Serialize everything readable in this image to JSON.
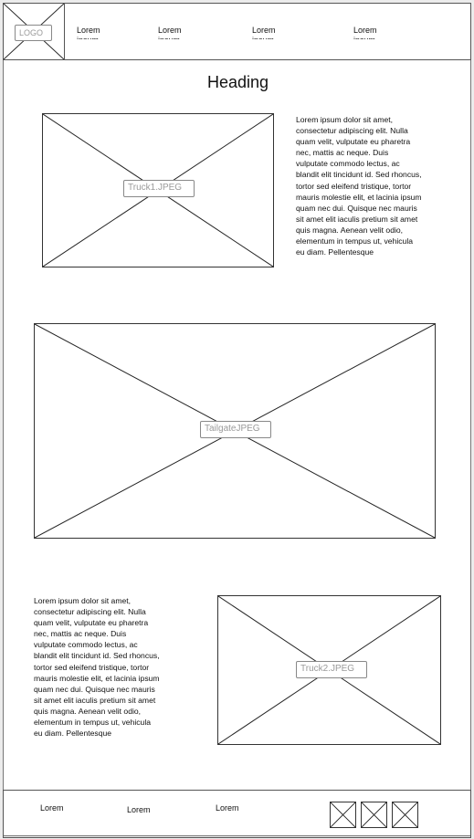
{
  "header": {
    "logo_label": "LOGO",
    "nav": [
      {
        "line1": "Lorem",
        "line2": "ipsum"
      },
      {
        "line1": "Lorem",
        "line2": "ipsum"
      },
      {
        "line1": "Lorem",
        "line2": "ipsum"
      },
      {
        "line1": "Lorem",
        "line2": "ipsum"
      }
    ]
  },
  "main": {
    "heading": "Heading",
    "section1": {
      "image_label": "Truck1.JPEG",
      "paragraph": "Lorem ipsum dolor sit amet, consectetur adipiscing elit. Nulla quam velit, vulputate eu pharetra nec, mattis ac neque. Duis vulputate commodo lectus, ac blandit elit tincidunt id. Sed rhoncus, tortor sed eleifend tristique, tortor mauris molestie elit, et lacinia ipsum quam nec dui. Quisque nec mauris sit amet elit iaculis pretium sit amet quis magna. Aenean velit odio, elementum in tempus ut, vehicula eu diam. Pellentesque"
    },
    "section2": {
      "image_label": "TailgateJPEG"
    },
    "section3": {
      "paragraph": "Lorem ipsum dolor sit amet, consectetur adipiscing elit. Nulla quam velit, vulputate eu pharetra nec, mattis ac neque. Duis vulputate commodo lectus, ac blandit elit tincidunt id. Sed rhoncus, tortor sed eleifend tristique, tortor mauris molestie elit, et lacinia ipsum quam nec dui. Quisque nec mauris sit amet elit iaculis pretium sit amet quis magna. Aenean velit odio, elementum in tempus ut, vehicula eu diam. Pellentesque",
      "image_label": "Truck2.JPEG"
    }
  },
  "footer": {
    "links": [
      "Lorem",
      "Lorem",
      "Lorem"
    ],
    "social_icons": [
      "social-icon-placeholder",
      "social-icon-placeholder",
      "social-icon-placeholder"
    ]
  }
}
